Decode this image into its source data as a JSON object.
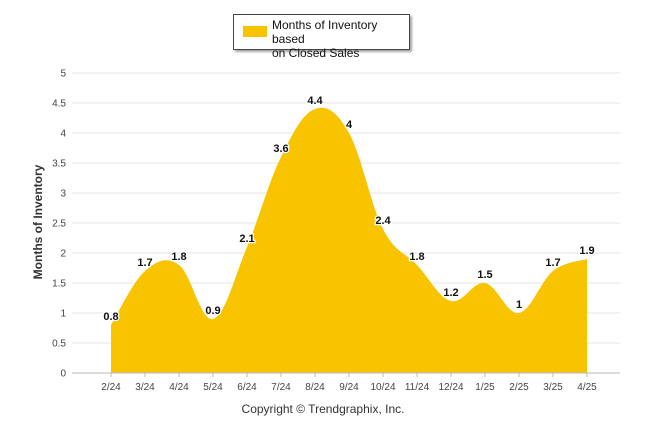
{
  "chart_data": {
    "type": "area",
    "categories": [
      "2/24",
      "3/24",
      "4/24",
      "5/24",
      "6/24",
      "7/24",
      "8/24",
      "9/24",
      "10/24",
      "11/24",
      "12/24",
      "1/25",
      "2/25",
      "3/25",
      "4/25"
    ],
    "series": [
      {
        "name": "Months of Inventory based on Closed Sales",
        "values": [
          0.8,
          1.7,
          1.8,
          0.9,
          2.1,
          3.6,
          4.4,
          4,
          2.4,
          1.8,
          1.2,
          1.5,
          1,
          1.7,
          1.9
        ]
      }
    ],
    "data_labels": [
      "0.8",
      "1.7",
      "1.8",
      "0.9",
      "2.1",
      "3.6",
      "4.4",
      "4",
      "2.4",
      "1.8",
      "1.2",
      "1.5",
      "1",
      "1.7",
      "1.9"
    ],
    "ylabel": "Months of Inventory",
    "xlabel": "",
    "ylim": [
      0,
      5
    ],
    "yticks": [
      "0",
      "0.5",
      "1",
      "1.5",
      "2",
      "2.5",
      "3",
      "3.5",
      "4",
      "4.5",
      "5"
    ],
    "grid": true,
    "legend_position": "top-center",
    "colors": {
      "area": "#F8C400",
      "grid": "#E6E6E6",
      "axis": "#B8B8B8"
    }
  },
  "legend": {
    "line1": "Months of Inventory based",
    "line2": "on Closed Sales"
  },
  "footer": {
    "copyright": "Copyright © Trendgraphix, Inc."
  }
}
